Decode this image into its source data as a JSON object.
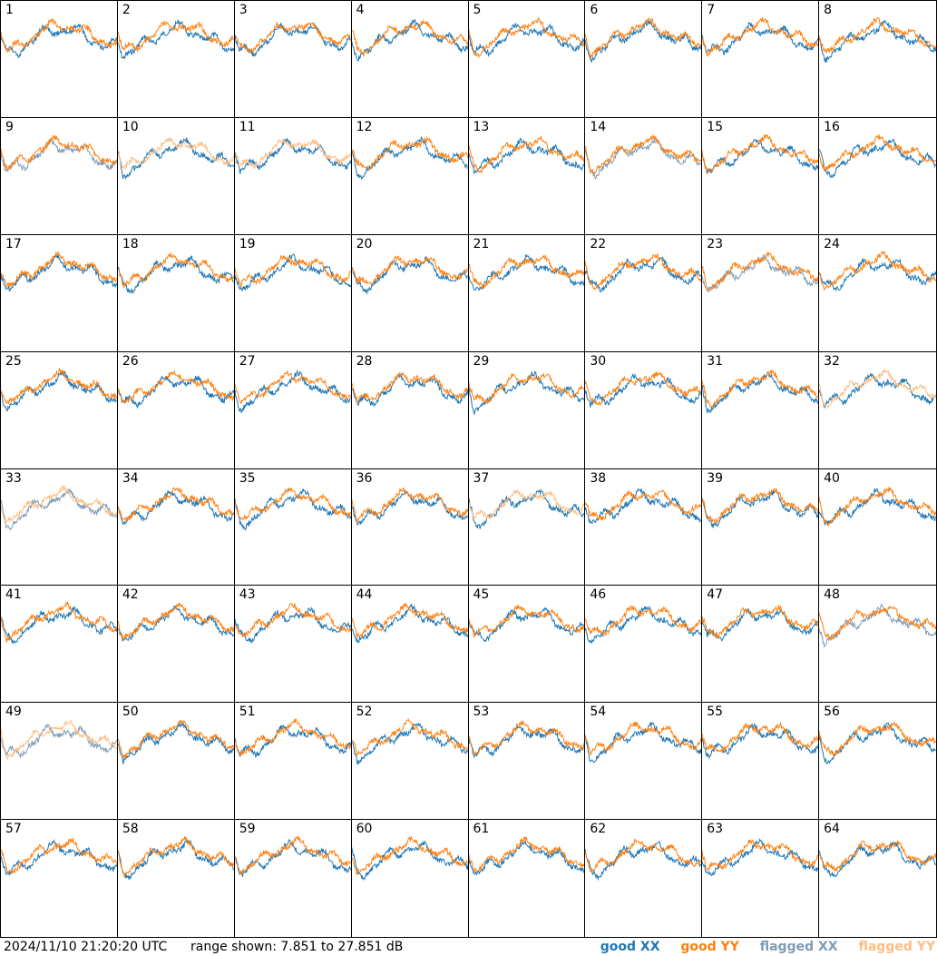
{
  "chart_data": {
    "type": "line",
    "title": "",
    "layout": "8x8 grid of small multiples",
    "antenna_labels": [
      "1",
      "2",
      "3",
      "4",
      "5",
      "6",
      "7",
      "8",
      "9",
      "10",
      "11",
      "12",
      "13",
      "14",
      "15",
      "16",
      "17",
      "18",
      "19",
      "20",
      "21",
      "22",
      "23",
      "24",
      "25",
      "26",
      "27",
      "28",
      "29",
      "30",
      "31",
      "32",
      "33",
      "34",
      "35",
      "36",
      "37",
      "38",
      "39",
      "40",
      "41",
      "42",
      "43",
      "44",
      "45",
      "46",
      "47",
      "48",
      "49",
      "50",
      "51",
      "52",
      "53",
      "54",
      "55",
      "56",
      "57",
      "58",
      "59",
      "60",
      "61",
      "62",
      "63",
      "64"
    ],
    "y_range_db": [
      7.851,
      27.851
    ],
    "legend": [
      {
        "label": "good XX",
        "color": "#1f77b4"
      },
      {
        "label": "good YY",
        "color": "#ff7f0e"
      },
      {
        "label": "flagged XX",
        "color": "#7f9bb5"
      },
      {
        "label": "flagged YY",
        "color": "#fdbe85"
      }
    ],
    "cell_status": {
      "flagged_xx": [
        9,
        14,
        23,
        33,
        48,
        49
      ],
      "flagged_yy": [
        10,
        11,
        32,
        33,
        37,
        49
      ]
    }
  },
  "footer": {
    "timestamp": "2024/11/10 21:20:20 UTC",
    "range_text": "range shown: 7.851 to 27.851 dB",
    "legend_labels": [
      "good XX",
      "good YY",
      "flagged XX",
      "flagged YY"
    ]
  }
}
